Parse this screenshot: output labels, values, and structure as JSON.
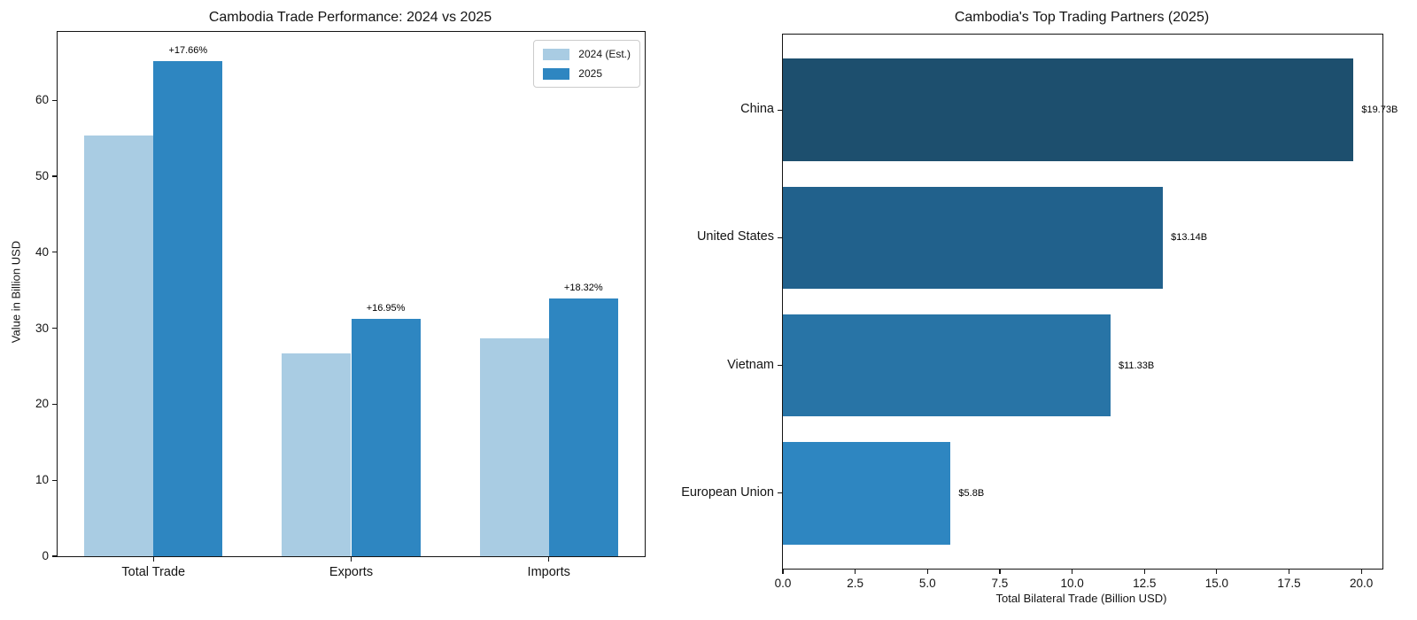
{
  "figure": {
    "background": "#ffffff"
  },
  "chart_data": [
    {
      "type": "bar",
      "title": "Cambodia Trade Performance: 2024 vs 2025",
      "ylabel": "Value in Billion USD",
      "categories": [
        "Total Trade",
        "Exports",
        "Imports"
      ],
      "series": [
        {
          "name": "2024 (Est.)",
          "color": "#a9cce3",
          "values": [
            55.4,
            26.7,
            28.7
          ]
        },
        {
          "name": "2025",
          "color": "#2e86c1",
          "values": [
            65.18,
            31.23,
            33.96
          ]
        }
      ],
      "bar_labels": [
        "+17.66%",
        "+16.95%",
        "+18.32%"
      ],
      "yticks": [
        0,
        10,
        20,
        30,
        40,
        50,
        60
      ],
      "ylim": [
        0,
        69
      ],
      "grid": false,
      "legend_position": "upper right"
    },
    {
      "type": "barh",
      "title": "Cambodia's Top Trading Partners (2025)",
      "xlabel": "Total Bilateral Trade (Billion USD)",
      "categories": [
        "China",
        "United States",
        "Vietnam",
        "European Union"
      ],
      "values": [
        19.73,
        13.14,
        11.33,
        5.8
      ],
      "bar_labels": [
        "$19.73B",
        "$13.14B",
        "$11.33B",
        "$5.8B"
      ],
      "colors": [
        "#1d4f6e",
        "#21618c",
        "#2874a6",
        "#2e86c1"
      ],
      "xticks": [
        "0.0",
        "2.5",
        "5.0",
        "7.5",
        "10.0",
        "12.5",
        "15.0",
        "17.5",
        "20.0"
      ],
      "xlim": [
        0,
        20.73
      ],
      "grid": false
    }
  ]
}
